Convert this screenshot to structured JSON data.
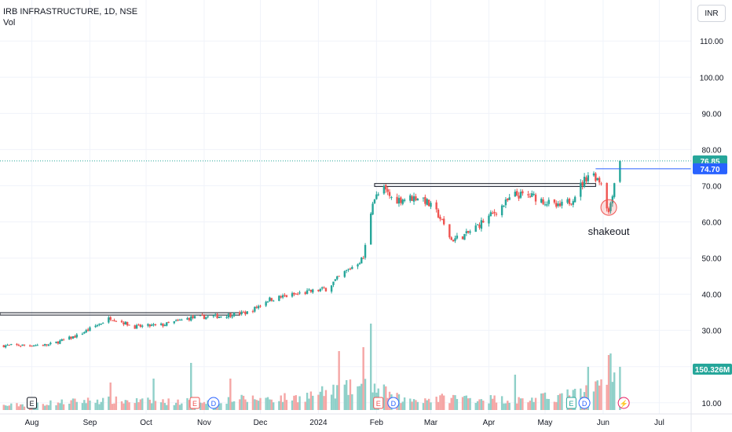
{
  "header": {
    "symbol_line": "IRB INFRASTRUCTURE, 1D, NSE",
    "volume_line": "Vol",
    "currency_button": "INR"
  },
  "colors": {
    "up": "#26a69a",
    "down": "#ef5350",
    "vol_up": "#8fd0c9",
    "vol_down": "#f5a6a5",
    "last_price": "#26a69a",
    "level_line": "#2962ff",
    "grid": "#f0f3fa",
    "axis_text": "#131722",
    "annotation_ring": "#ef5350"
  },
  "chart_data": {
    "type": "candlestick",
    "title": "IRB INFRASTRUCTURE, 1D, NSE",
    "y_axis": {
      "ticks": [
        10,
        20,
        30,
        40,
        50,
        60,
        70,
        80,
        90,
        100,
        110
      ],
      "tick_labels": [
        "10.00",
        "20.00",
        "30.00",
        "40.00",
        "50.00",
        "60.00",
        "70.00",
        "80.00",
        "90.00",
        "100.00",
        "110.00"
      ],
      "range": [
        8,
        117
      ]
    },
    "x_axis": {
      "tick_labels": [
        "Aug",
        "Sep",
        "Oct",
        "Nov",
        "Dec",
        "2024",
        "Feb",
        "Mar",
        "Apr",
        "May",
        "Jun",
        "Jul"
      ],
      "tick_dates": [
        "2023-08-01",
        "2023-09-01",
        "2023-10-01",
        "2023-11-01",
        "2023-12-01",
        "2024-01-01",
        "2024-02-01",
        "2024-03-01",
        "2024-04-01",
        "2024-05-01",
        "2024-06-01",
        "2024-07-01"
      ],
      "range": [
        "2023-07-15",
        "2024-07-18"
      ]
    },
    "price_path": [
      [
        "2023-07-15",
        25.8
      ],
      [
        "2023-08-10",
        26.0
      ],
      [
        "2023-08-25",
        28.5
      ],
      [
        "2023-09-05",
        31.5
      ],
      [
        "2023-09-12",
        33.5
      ],
      [
        "2023-09-25",
        31.0
      ],
      [
        "2023-10-10",
        31.5
      ],
      [
        "2023-10-25",
        33.5
      ],
      [
        "2023-11-10",
        34.0
      ],
      [
        "2023-11-25",
        35.0
      ],
      [
        "2023-12-05",
        38.5
      ],
      [
        "2023-12-20",
        40.0
      ],
      [
        "2024-01-05",
        41.5
      ],
      [
        "2024-01-15",
        46.0
      ],
      [
        "2024-01-25",
        50.0
      ],
      [
        "2024-01-30",
        66.0
      ],
      [
        "2024-02-05",
        69.0
      ],
      [
        "2024-02-10",
        66.0
      ],
      [
        "2024-02-25",
        67.0
      ],
      [
        "2024-03-05",
        62.0
      ],
      [
        "2024-03-12",
        55.0
      ],
      [
        "2024-03-20",
        56.5
      ],
      [
        "2024-04-05",
        63.0
      ],
      [
        "2024-04-15",
        67.5
      ],
      [
        "2024-04-25",
        67.0
      ],
      [
        "2024-05-08",
        64.0
      ],
      [
        "2024-05-15",
        66.0
      ],
      [
        "2024-05-25",
        74.0
      ],
      [
        "2024-05-31",
        71.0
      ],
      [
        "2024-06-04",
        62.5
      ],
      [
        "2024-06-07",
        71.0
      ],
      [
        "2024-06-10",
        76.85
      ]
    ],
    "volume_path": [
      [
        "2023-07-15",
        0.5
      ],
      [
        "2023-09-05",
        1.2
      ],
      [
        "2023-10-15",
        1.0
      ],
      [
        "2023-11-20",
        1.3
      ],
      [
        "2023-12-20",
        1.5
      ],
      [
        "2024-01-28",
        3.0
      ],
      [
        "2024-02-15",
        1.2
      ],
      [
        "2024-03-15",
        1.5
      ],
      [
        "2024-04-20",
        1.2
      ],
      [
        "2024-05-20",
        2.0
      ],
      [
        "2024-06-10",
        4.0
      ]
    ],
    "volume_spikes": [
      [
        "2023-09-12",
        3.5
      ],
      [
        "2023-10-05",
        4.0
      ],
      [
        "2023-10-25",
        6.0
      ],
      [
        "2023-11-15",
        4.0
      ],
      [
        "2024-01-12",
        7.5
      ],
      [
        "2024-01-25",
        8.0
      ],
      [
        "2024-01-29",
        11.0
      ],
      [
        "2024-04-15",
        4.5
      ],
      [
        "2024-05-24",
        5.5
      ],
      [
        "2024-06-01",
        13.0
      ],
      [
        "2024-06-04",
        7.0
      ],
      [
        "2024-06-05",
        7.2
      ],
      [
        "2024-06-10",
        5.5
      ]
    ],
    "last_price": "76.85",
    "horizontal_level": "74.70",
    "volume_label": "150.326M",
    "annotations": {
      "text": "shakeout",
      "marker_date": "2024-06-04",
      "marker_price": 64.0
    },
    "zones": [
      {
        "from": "2023-07-15",
        "to": "2023-11-20",
        "low": 34.3,
        "high": 34.9
      },
      {
        "from": "2024-01-31",
        "to": "2024-05-28",
        "low": 69.8,
        "high": 70.6
      }
    ],
    "event_markers": [
      {
        "date": "2023-08-01",
        "label": "E",
        "kind": "earnings"
      },
      {
        "date": "2023-10-27",
        "label": "E",
        "kind": "earnings"
      },
      {
        "date": "2023-11-06",
        "label": "D",
        "kind": "dividend"
      },
      {
        "date": "2024-02-02",
        "label": "E",
        "kind": "earnings"
      },
      {
        "date": "2024-02-10",
        "label": "D",
        "kind": "dividend"
      },
      {
        "date": "2024-05-15",
        "label": "E",
        "kind": "earnings"
      },
      {
        "date": "2024-05-22",
        "label": "D",
        "kind": "dividend"
      },
      {
        "date": "2024-06-12",
        "label": "⚡",
        "kind": "split"
      }
    ]
  }
}
